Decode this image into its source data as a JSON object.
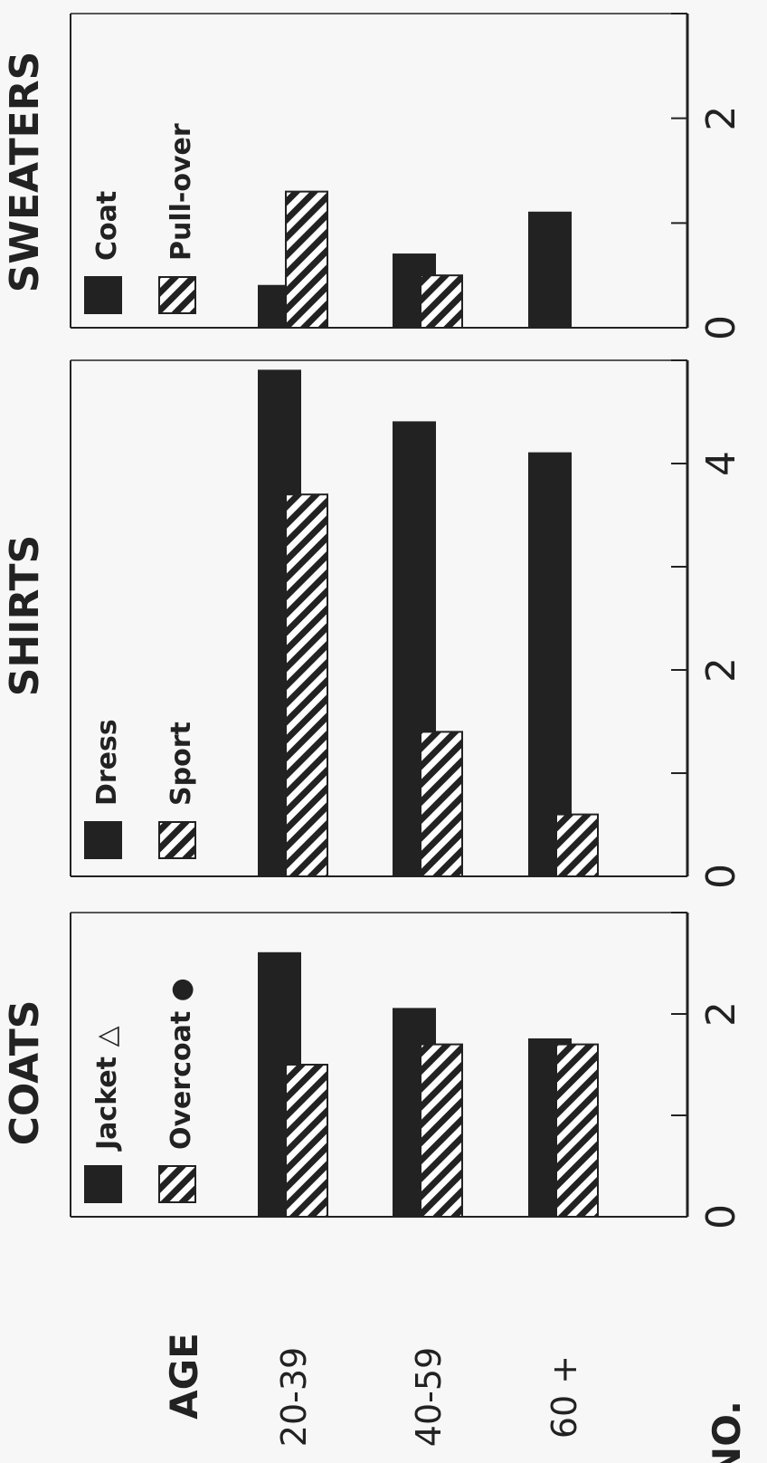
{
  "labels": {
    "age_heading": "AGE",
    "number_axis": "NO."
  },
  "chart_data": [
    {
      "type": "bar",
      "title": "COATS",
      "categories": [
        "20-39",
        "40-59",
        "60 +"
      ],
      "series": [
        {
          "name": "Jacket",
          "marker": "△",
          "fill": "solid",
          "values": [
            2.6,
            2.05,
            1.75
          ]
        },
        {
          "name": "Overcoat",
          "marker": "●",
          "fill": "hatched",
          "values": [
            1.5,
            1.7,
            1.7
          ]
        }
      ],
      "ticks": [
        0,
        2
      ],
      "xlim": [
        0,
        3.0
      ]
    },
    {
      "type": "bar",
      "title": "SHIRTS",
      "categories": [
        "20-39",
        "40-59",
        "60 +"
      ],
      "series": [
        {
          "name": "Dress",
          "fill": "solid",
          "values": [
            4.9,
            4.4,
            4.1
          ]
        },
        {
          "name": "Sport",
          "fill": "hatched",
          "values": [
            3.7,
            1.4,
            0.6
          ]
        }
      ],
      "ticks": [
        0,
        2,
        4
      ],
      "xlim": [
        0,
        5.0
      ]
    },
    {
      "type": "bar",
      "title": "SWEATERS",
      "categories": [
        "20-39",
        "40-59",
        "60 +"
      ],
      "series": [
        {
          "name": "Coat",
          "fill": "solid",
          "values": [
            0.4,
            0.7,
            1.1
          ]
        },
        {
          "name": "Pull-over",
          "fill": "hatched",
          "values": [
            1.3,
            0.5,
            0
          ]
        }
      ],
      "ticks": [
        0,
        2
      ],
      "xlim": [
        0,
        3.0
      ]
    }
  ],
  "colors": {
    "ink": "#222222",
    "paper": "#ffffff",
    "background": "#f7f7f7"
  }
}
